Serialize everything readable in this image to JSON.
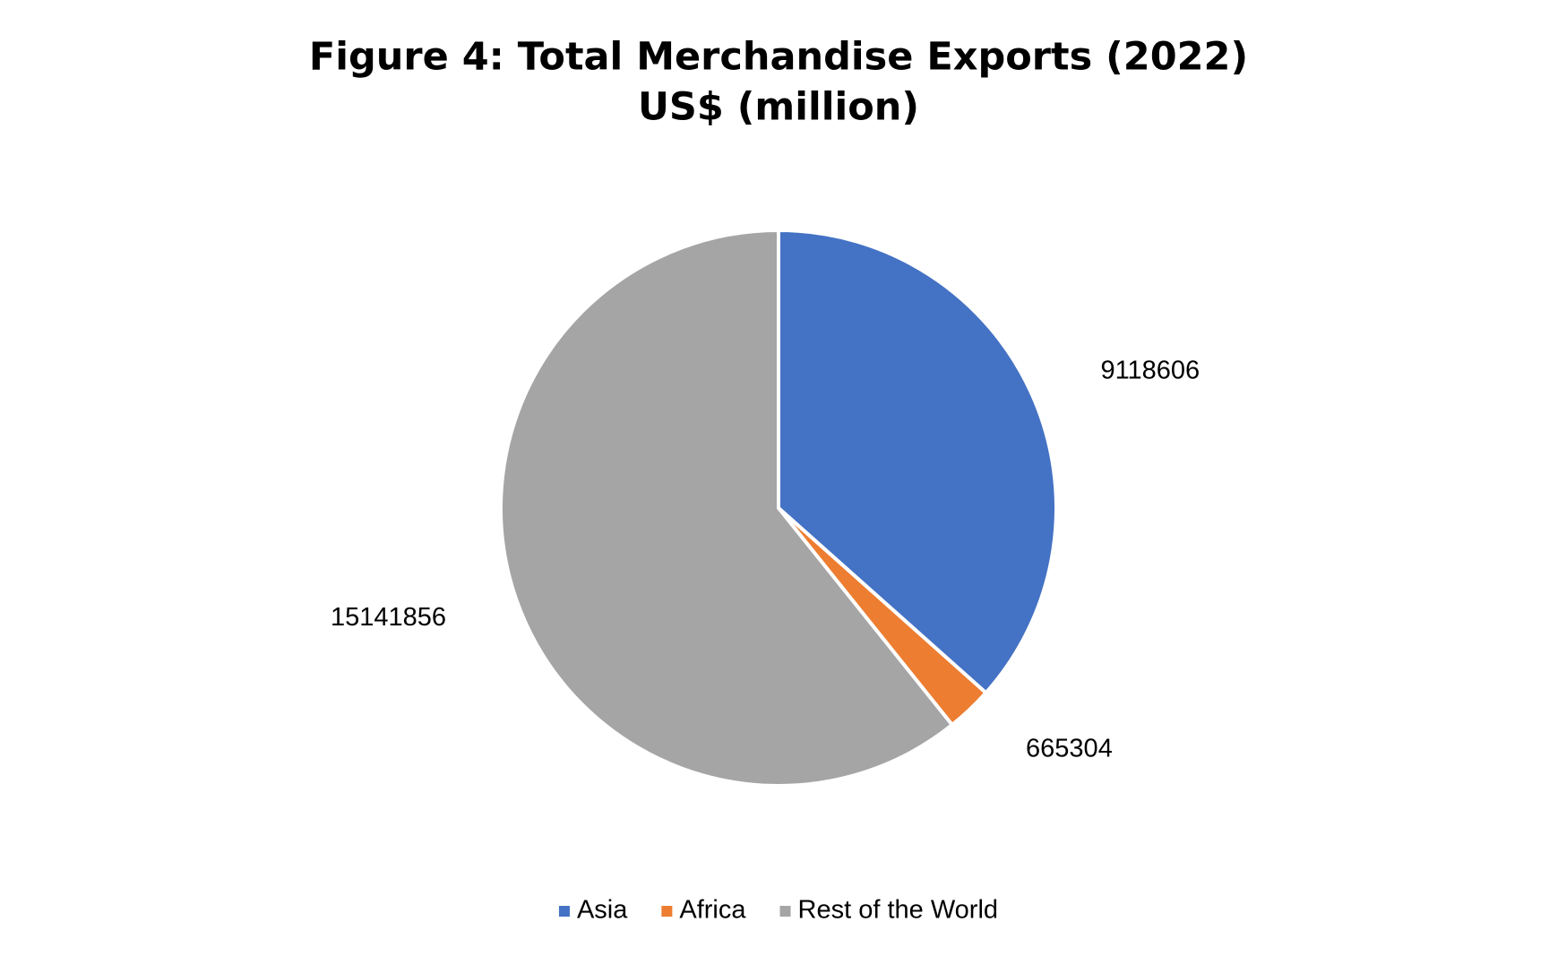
{
  "chart_data": {
    "type": "pie",
    "title": "Figure 4: Total Merchandise Exports (2022)",
    "subtitle": "US$ (million)",
    "categories": [
      "Asia",
      "Africa",
      "Rest of the World"
    ],
    "values": [
      9118606,
      665304,
      15141856
    ],
    "colors": [
      "#4472c4",
      "#ed7d31",
      "#a5a5a5"
    ],
    "legend": "bottom"
  }
}
